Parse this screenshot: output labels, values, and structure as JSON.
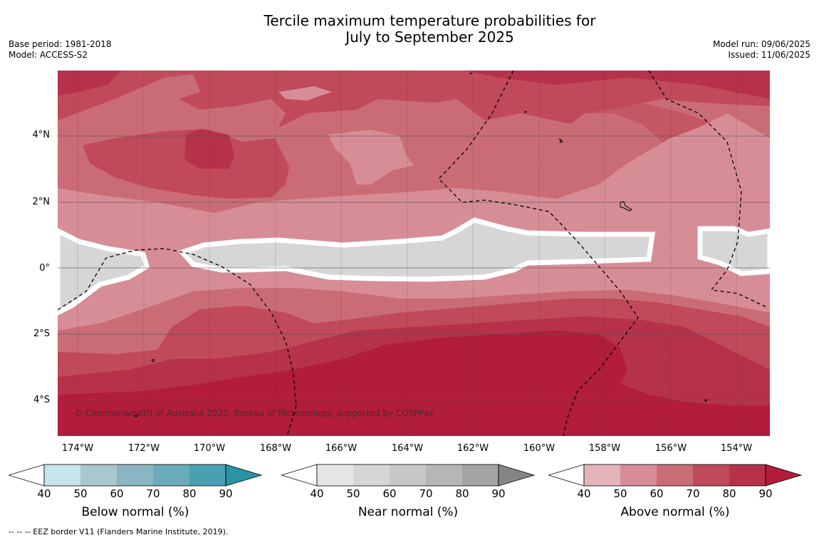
{
  "title": {
    "line1": "Tercile maximum temperature probabilities for",
    "line2": "July to September 2025"
  },
  "meta_left": {
    "base_period": "Base period: 1981-2018",
    "model": "Model: ACCESS-S2"
  },
  "meta_right": {
    "model_run": "Model run: 09/06/2025",
    "issued": "Issued: 11/06/2025"
  },
  "map": {
    "lat_labels": [
      "4°N",
      "2°N",
      "0°",
      "2°S",
      "4°S"
    ],
    "lon_labels": [
      "174°W",
      "172°W",
      "170°W",
      "168°W",
      "166°W",
      "164°W",
      "162°W",
      "160°W",
      "158°W",
      "156°W",
      "154°W"
    ],
    "copyright": "© Commonwealth of Australia 2025, Bureau of Meteorology, supported by COSPPac"
  },
  "colorbars": [
    {
      "label": "Below normal (%)",
      "ticks": [
        "40",
        "50",
        "60",
        "70",
        "80",
        "90"
      ],
      "colors": [
        "#ffffff",
        "#c8e3e9",
        "#a9c8cd",
        "#8ab5c2",
        "#6aacba",
        "#48a0b0",
        "#2a93a6"
      ]
    },
    {
      "label": "Near normal (%)",
      "ticks": [
        "40",
        "50",
        "60",
        "70",
        "80",
        "90"
      ],
      "colors": [
        "#ffffff",
        "#e6e6e6",
        "#d6d6d6",
        "#c7c7c7",
        "#b6b6b6",
        "#a3a3a3",
        "#858585"
      ]
    },
    {
      "label": "Above normal (%)",
      "ticks": [
        "40",
        "50",
        "60",
        "70",
        "80",
        "90"
      ],
      "colors": [
        "#ffffff",
        "#e3b5bb",
        "#d78d96",
        "#ca6c76",
        "#c04a59",
        "#b5324a",
        "#b11d3b"
      ]
    }
  ],
  "footnote": "-- -- -- EEZ border V11 (Flanders Marine Institute, 2019)."
}
